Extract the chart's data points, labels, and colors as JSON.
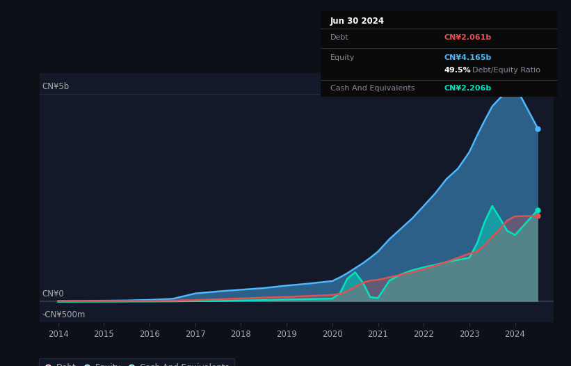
{
  "background_color": "#0d1117",
  "plot_bg_color": "#131929",
  "title": "Jun 30 2024",
  "tooltip_debt_label": "Debt",
  "tooltip_equity_label": "Equity",
  "tooltip_cash_label": "Cash And Equivalents",
  "tooltip_debt": "CN¥2.061b",
  "tooltip_equity": "CN¥4.165b",
  "tooltip_ratio": "49.5%",
  "tooltip_ratio_label": "Debt/Equity Ratio",
  "tooltip_cash": "CN¥2.206b",
  "debt_color": "#e05252",
  "equity_color": "#4db8ff",
  "cash_color": "#00e5c0",
  "grid_color": "#2a3045",
  "text_color": "#aaaaaa",
  "dim_text_color": "#888899",
  "zero_line_color": "#ffffff",
  "ylim": [
    -500000000,
    5500000000
  ],
  "yticks": [
    -500000000,
    0,
    5000000000
  ],
  "ytick_labels": [
    "-CN¥500m",
    "CN¥0",
    "CN¥5b"
  ],
  "xmin": 2013.6,
  "xmax": 2024.85,
  "xticks": [
    2014,
    2015,
    2016,
    2017,
    2018,
    2019,
    2020,
    2021,
    2022,
    2023,
    2024
  ],
  "years": [
    2014.0,
    2014.5,
    2015.0,
    2015.5,
    2016.0,
    2016.5,
    2017.0,
    2017.5,
    2018.0,
    2018.5,
    2019.0,
    2019.5,
    2020.0,
    2020.17,
    2020.33,
    2020.5,
    2020.67,
    2020.83,
    2021.0,
    2021.25,
    2021.5,
    2021.75,
    2022.0,
    2022.25,
    2022.5,
    2022.75,
    2023.0,
    2023.17,
    2023.33,
    2023.5,
    2023.67,
    2023.83,
    2024.0,
    2024.5
  ],
  "equity": [
    8000000.0,
    10000000.0,
    15000000.0,
    22000000.0,
    35000000.0,
    60000000.0,
    190000000.0,
    240000000.0,
    280000000.0,
    320000000.0,
    380000000.0,
    430000000.0,
    490000000.0,
    580000000.0,
    680000000.0,
    800000000.0,
    920000000.0,
    1050000000.0,
    1200000000.0,
    1500000000.0,
    1750000000.0,
    2000000000.0,
    2300000000.0,
    2600000000.0,
    2950000000.0,
    3200000000.0,
    3600000000.0,
    4000000000.0,
    4350000000.0,
    4700000000.0,
    4900000000.0,
    5050000000.0,
    5200000000.0,
    4165000000.0
  ],
  "debt": [
    5000000.0,
    6000000.0,
    8000000.0,
    10000000.0,
    12000000.0,
    18000000.0,
    30000000.0,
    50000000.0,
    70000000.0,
    90000000.0,
    110000000.0,
    130000000.0,
    155000000.0,
    180000000.0,
    250000000.0,
    350000000.0,
    450000000.0,
    500000000.0,
    520000000.0,
    580000000.0,
    640000000.0,
    700000000.0,
    780000000.0,
    860000000.0,
    950000000.0,
    1050000000.0,
    1150000000.0,
    1200000000.0,
    1350000000.0,
    1550000000.0,
    1750000000.0,
    1950000000.0,
    2050000000.0,
    2061000000.0
  ],
  "cash": [
    -10000000.0,
    -8000000.0,
    -6000000.0,
    -5000000.0,
    -3000000.0,
    0,
    5000000.0,
    10000000.0,
    20000000.0,
    30000000.0,
    45000000.0,
    55000000.0,
    65000000.0,
    200000000.0,
    550000000.0,
    700000000.0,
    450000000.0,
    100000000.0,
    80000000.0,
    500000000.0,
    650000000.0,
    750000000.0,
    820000000.0,
    880000000.0,
    950000000.0,
    1000000000.0,
    1050000000.0,
    1400000000.0,
    1900000000.0,
    2300000000.0,
    2000000000.0,
    1700000000.0,
    1600000000.0,
    2206000000.0
  ],
  "legend_labels": [
    "Debt",
    "Equity",
    "Cash And Equivalents"
  ],
  "legend_colors": [
    "#e05252",
    "#4db8ff",
    "#00e5c0"
  ]
}
